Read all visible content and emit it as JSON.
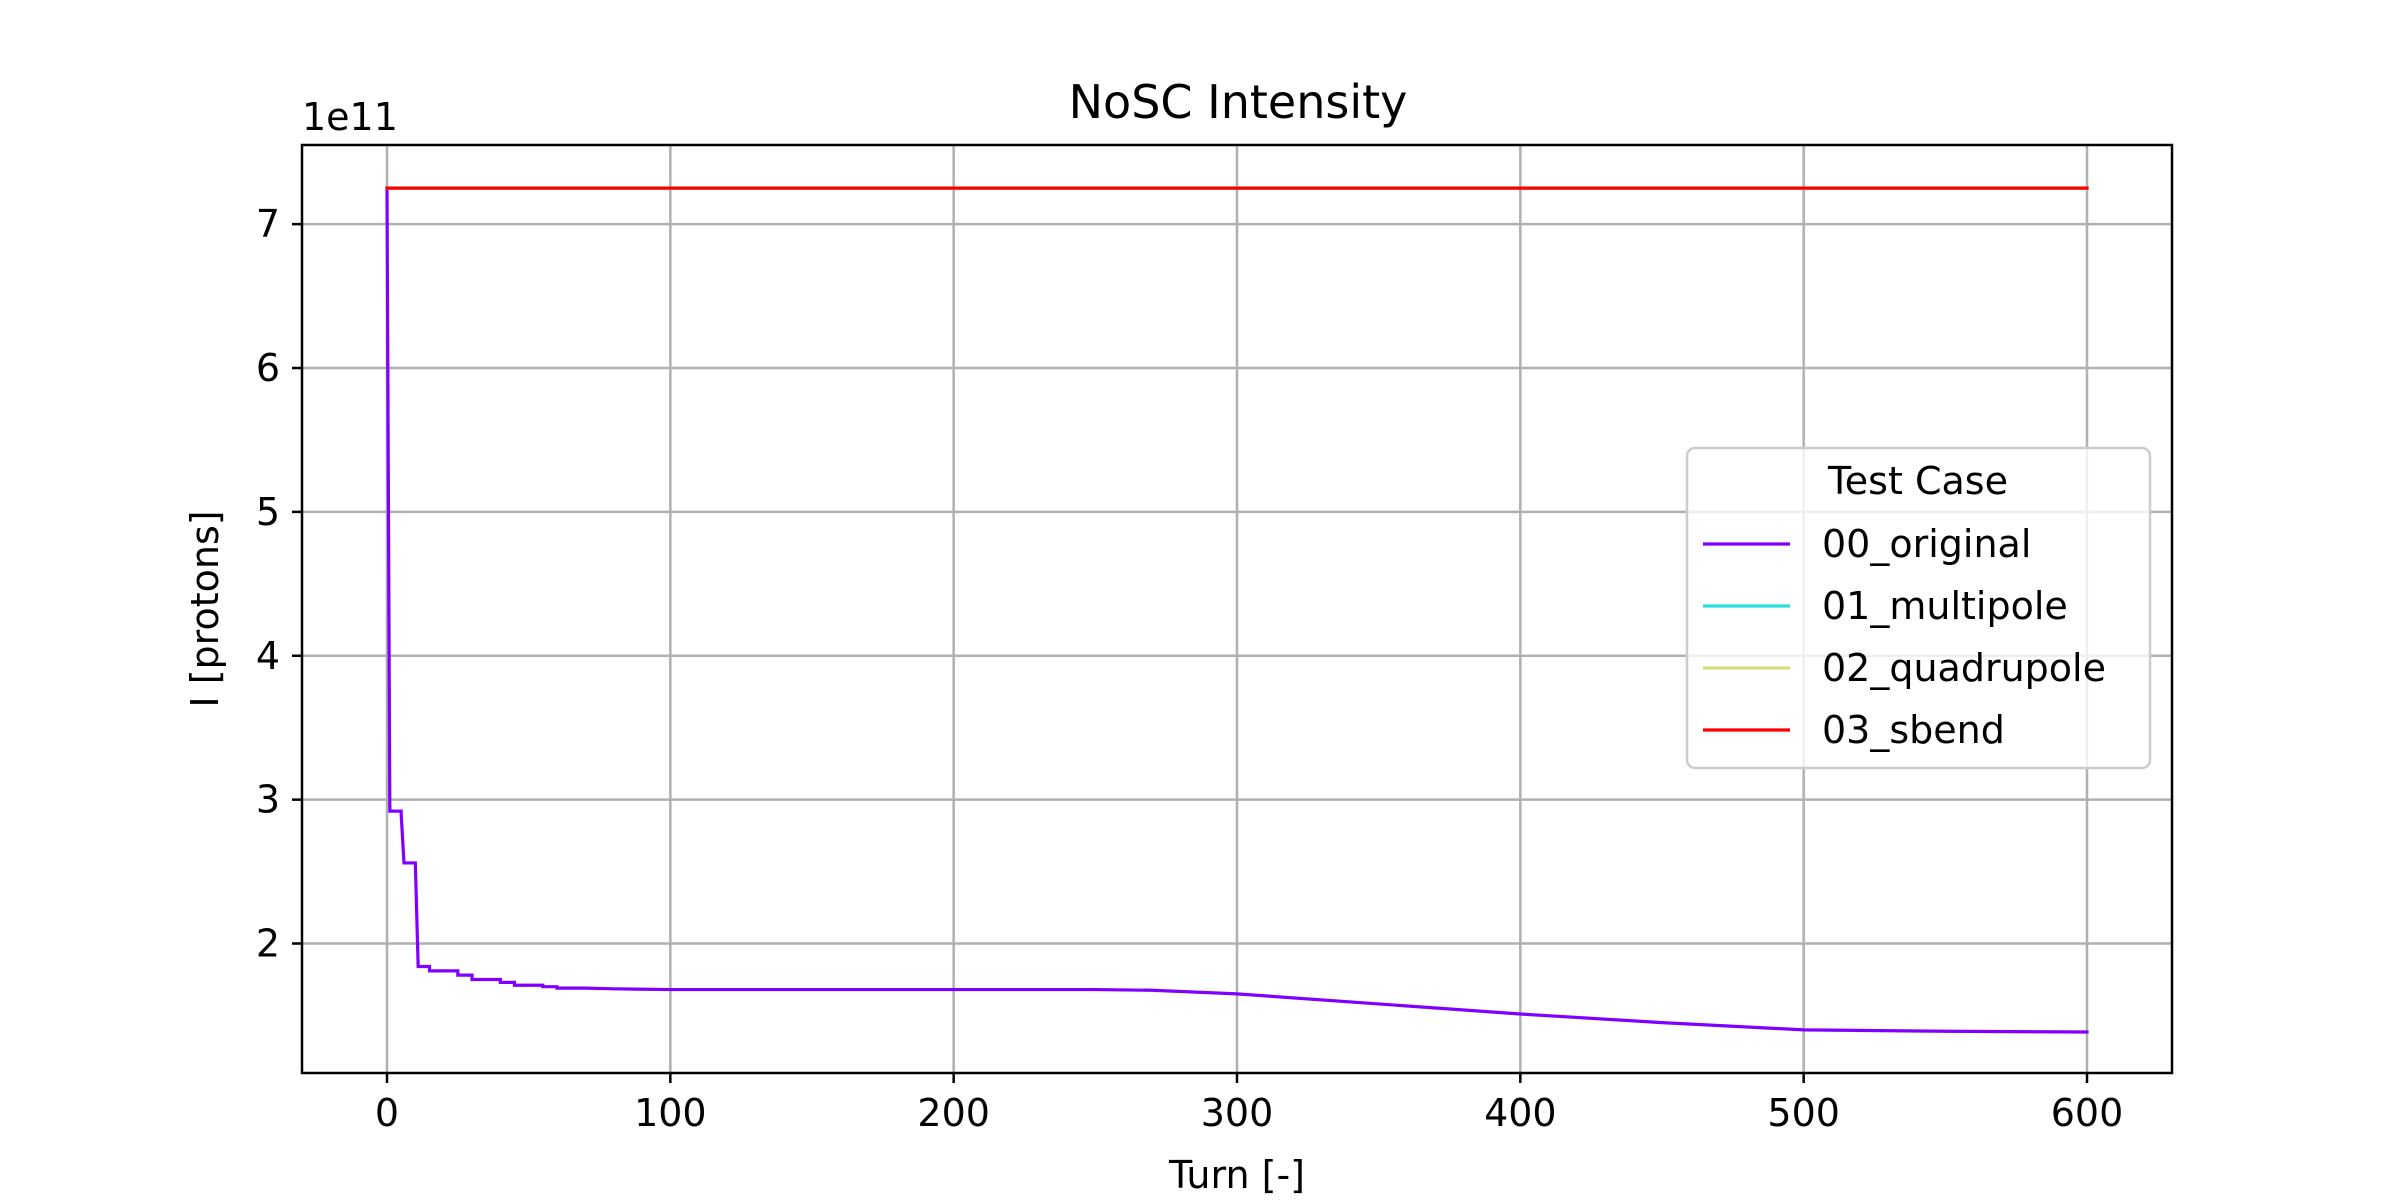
{
  "chart_data": {
    "type": "line",
    "title": "NoSC Intensity",
    "xlabel": "Turn [-]",
    "ylabel": "I [protons]",
    "y_offset_label": "1e11",
    "xlim": [
      -30,
      630
    ],
    "ylim": [
      1.1,
      7.55
    ],
    "x_ticks": [
      0,
      100,
      200,
      300,
      400,
      500,
      600
    ],
    "x_tick_labels": [
      "0",
      "100",
      "200",
      "300",
      "400",
      "500",
      "600"
    ],
    "y_ticks": [
      2,
      3,
      4,
      5,
      6,
      7
    ],
    "y_tick_labels": [
      "2",
      "3",
      "4",
      "5",
      "6",
      "7"
    ],
    "grid": true,
    "legend": {
      "title": "Test Case",
      "placement": "center-right"
    },
    "series": [
      {
        "name": "00_original",
        "color": "#8000ff",
        "x": [
          0,
          1,
          2,
          3,
          5,
          5,
          6,
          7,
          8,
          9,
          10,
          11,
          12,
          15,
          15,
          25,
          25,
          30,
          30,
          40,
          40,
          45,
          45,
          55,
          55,
          60,
          60,
          70,
          80,
          100,
          150,
          200,
          250,
          270,
          300,
          350,
          400,
          450,
          500,
          550,
          600
        ],
        "y": [
          7.25,
          2.92,
          2.92,
          2.92,
          2.92,
          2.9,
          2.56,
          2.56,
          2.56,
          2.56,
          2.56,
          1.84,
          1.84,
          1.84,
          1.81,
          1.81,
          1.78,
          1.78,
          1.75,
          1.75,
          1.73,
          1.73,
          1.71,
          1.71,
          1.7,
          1.7,
          1.69,
          1.69,
          1.685,
          1.68,
          1.68,
          1.68,
          1.68,
          1.675,
          1.65,
          1.58,
          1.51,
          1.45,
          1.4,
          1.39,
          1.385
        ]
      },
      {
        "name": "01_multipole",
        "color": "#2adddd",
        "x": [
          0,
          600
        ],
        "y": [
          7.25,
          7.25
        ]
      },
      {
        "name": "02_quadrupole",
        "color": "#d4dd80",
        "x": [
          0,
          600
        ],
        "y": [
          7.25,
          7.25
        ]
      },
      {
        "name": "03_sbend",
        "color": "#ff0000",
        "x": [
          0,
          600
        ],
        "y": [
          7.25,
          7.25
        ]
      }
    ]
  }
}
